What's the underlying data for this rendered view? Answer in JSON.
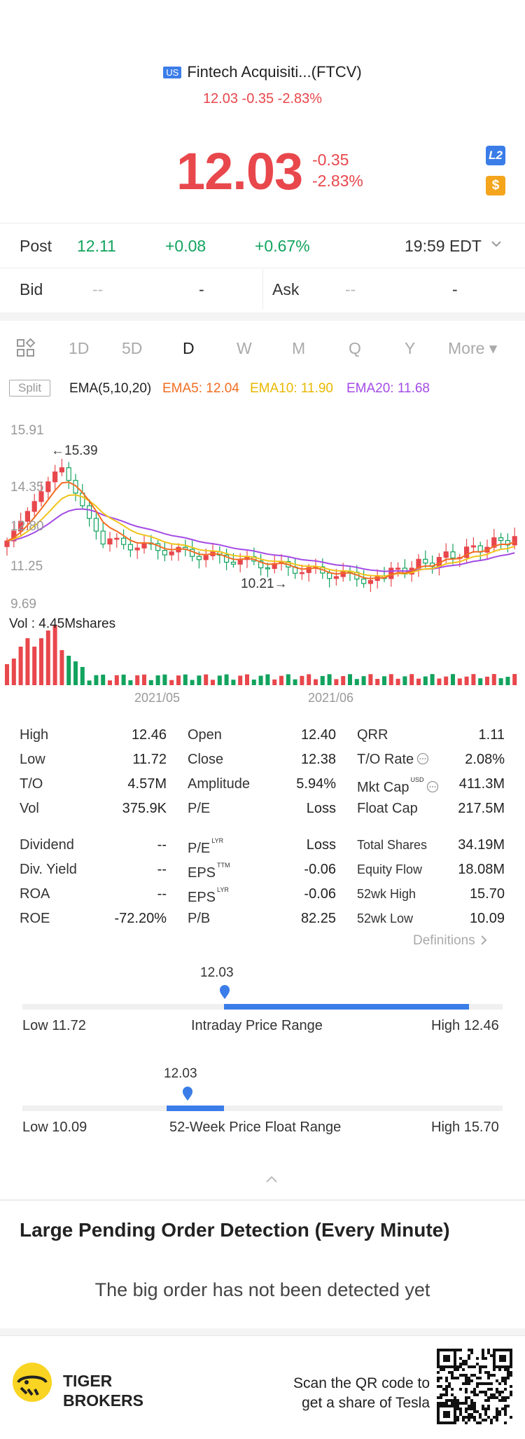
{
  "header": {
    "market_badge": "US",
    "title": "Fintech Acquisiti...(FTCV)",
    "subtitle": "12.03 -0.35 -2.83%",
    "price": "12.03",
    "change": "-0.35",
    "change_pct": "-2.83%",
    "l2_badge": "L2",
    "dollar_badge": "$"
  },
  "post": {
    "label": "Post",
    "price": "12.11",
    "change": "+0.08",
    "change_pct": "+0.67%",
    "time": "19:59 EDT"
  },
  "bid_ask": {
    "bid_label": "Bid",
    "bid_price": "--",
    "bid_size": "-",
    "ask_label": "Ask",
    "ask_price": "--",
    "ask_size": "-"
  },
  "periods": [
    "1D",
    "5D",
    "D",
    "W",
    "M",
    "Q",
    "Y",
    "More ▾"
  ],
  "active_period": "D",
  "ema": {
    "split": "Split",
    "label": "EMA(5,10,20)",
    "ema5": "EMA5: 12.04",
    "ema10": "EMA10: 11.90",
    "ema20": "EMA20: 11.68"
  },
  "chart": {
    "y_labels": [
      "15.91",
      "14.35",
      "12.80",
      "11.25",
      "9.69"
    ],
    "high_marker": "←15.39",
    "low_marker": "10.21→",
    "vol_label": "Vol : 4.45Mshares",
    "x_labels": [
      "2021/05",
      "2021/06"
    ],
    "colors": {
      "up": "#e8474c",
      "down": "#12a35e",
      "ema5": "#f26d22",
      "ema10": "#f0c419",
      "ema20": "#a44be6"
    }
  },
  "stats": {
    "col1": [
      {
        "label": "High",
        "value": "12.46"
      },
      {
        "label": "Low",
        "value": "11.72"
      },
      {
        "label": "T/O",
        "value": "4.57M"
      },
      {
        "label": "Vol",
        "value": "375.9K"
      },
      {
        "label": "Dividend",
        "value": "--"
      },
      {
        "label": "Div. Yield",
        "value": "--"
      },
      {
        "label": "ROA",
        "value": "--"
      },
      {
        "label": "ROE",
        "value": "-72.20%"
      }
    ],
    "col2": [
      {
        "label": "Open",
        "value": "12.40"
      },
      {
        "label": "Close",
        "value": "12.38"
      },
      {
        "label": "Amplitude",
        "value": "5.94%"
      },
      {
        "label": "P/E",
        "value": "Loss"
      },
      {
        "label": "P/E",
        "sup": "LYR",
        "value": "Loss"
      },
      {
        "label": "EPS",
        "sup": "TTM",
        "value": "-0.06"
      },
      {
        "label": "EPS",
        "sup": "LYR",
        "value": "-0.06"
      },
      {
        "label": "P/B",
        "value": "82.25"
      }
    ],
    "col3": [
      {
        "label": "QRR",
        "value": "1.11"
      },
      {
        "label": "T/O Rate",
        "value": "2.08%"
      },
      {
        "label": "Mkt Cap",
        "sup": "USD",
        "value": "411.3M"
      },
      {
        "label": "Float Cap",
        "value": "217.5M"
      },
      {
        "label": "Total Shares",
        "value": "34.19M"
      },
      {
        "label": "Equity Flow",
        "value": "18.08M"
      },
      {
        "label": "52wk High",
        "value": "15.70"
      },
      {
        "label": "52wk Low",
        "value": "10.09"
      }
    ],
    "definitions": "Definitions"
  },
  "intraday_range": {
    "current": "12.03",
    "low": "Low 11.72",
    "title": "Intraday Price Range",
    "high": "High 12.46",
    "fill_start": 0.42,
    "fill_end": 0.93
  },
  "week52_range": {
    "current": "12.03",
    "low": "Low 10.09",
    "title": "52-Week Price Float Range",
    "high": "High 15.70",
    "fill_start": 0.3,
    "fill_end": 0.42
  },
  "pending": {
    "title": "Large Pending Order Detection (Every Minute)",
    "message": "The big order has not been detected yet"
  },
  "banner": {
    "brand_line1": "TIGER",
    "brand_line2": "BROKERS",
    "cta_line1": "Scan the QR code to",
    "cta_line2": "get a share of Tesla"
  }
}
